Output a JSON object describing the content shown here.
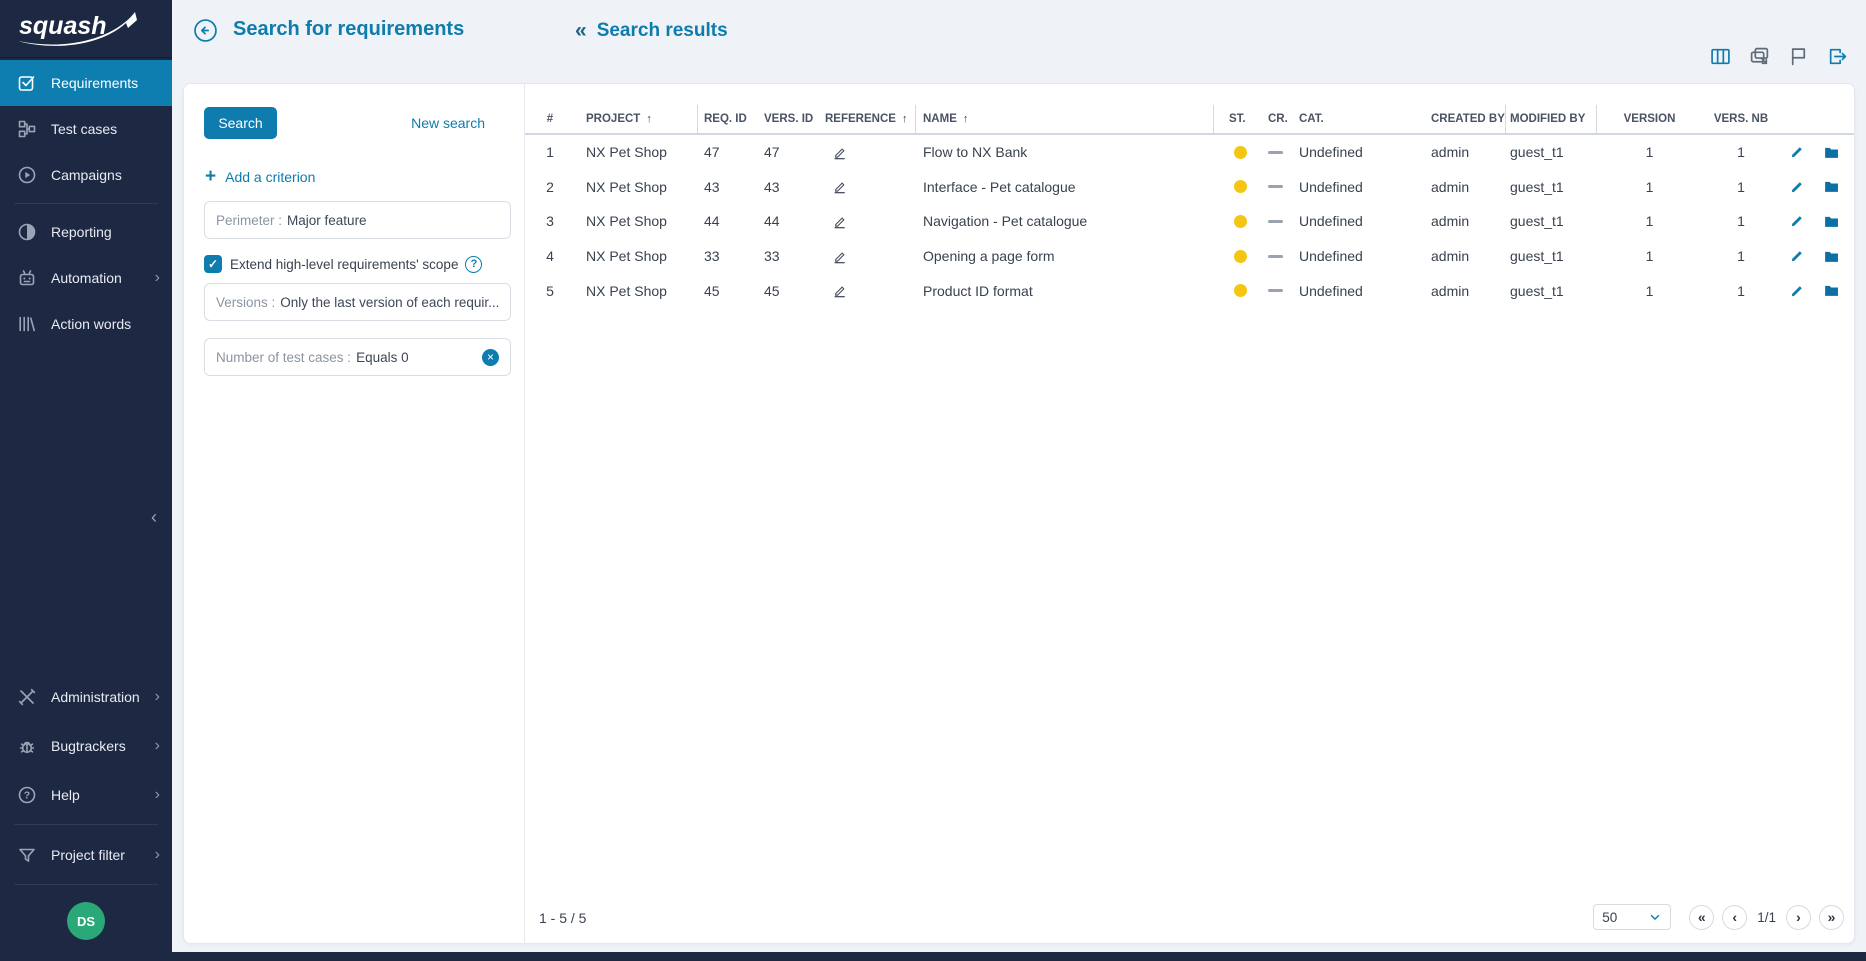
{
  "app": {
    "logo_text": "squash"
  },
  "sidebar": {
    "items": [
      {
        "label": "Requirements",
        "icon": "requirements-icon",
        "active": true
      },
      {
        "label": "Test cases",
        "icon": "test-cases-icon"
      },
      {
        "label": "Campaigns",
        "icon": "campaigns-icon"
      },
      {
        "label": "Reporting",
        "icon": "reporting-icon",
        "divider_before": true
      },
      {
        "label": "Automation",
        "icon": "automation-icon",
        "chevron": true
      },
      {
        "label": "Action words",
        "icon": "action-words-icon"
      }
    ],
    "bottom_items": [
      {
        "label": "Administration",
        "icon": "administration-icon",
        "chevron": true
      },
      {
        "label": "Bugtrackers",
        "icon": "bugtrackers-icon",
        "chevron": true
      },
      {
        "label": "Help",
        "icon": "help-icon",
        "chevron": true
      },
      {
        "label": "Project filter",
        "icon": "project-filter-icon",
        "chevron": true,
        "divider_before": true
      }
    ],
    "avatar_initials": "DS"
  },
  "header": {
    "title": "Search for requirements",
    "results_label": "Search results",
    "toolbar": [
      {
        "icon": "columns-icon",
        "style": "accent"
      },
      {
        "icon": "duplicate-icon",
        "style": "muted"
      },
      {
        "icon": "flag-icon",
        "style": "muted"
      },
      {
        "icon": "export-icon",
        "style": "accent"
      }
    ]
  },
  "search_panel": {
    "search_button": "Search",
    "new_search_link": "New search",
    "add_criterion_label": "Add a criterion",
    "checkbox": {
      "label": "Extend high-level requirements' scope",
      "checked": true
    },
    "criteria": [
      {
        "label": "Perimeter :",
        "value": "Major feature",
        "removable": false
      },
      {
        "label": "Versions :",
        "value": "Only the last version of each requir...",
        "removable": false
      },
      {
        "label": "Number of test cases :",
        "value": "Equals 0",
        "removable": true
      }
    ]
  },
  "table": {
    "columns": [
      {
        "label": "#"
      },
      {
        "label": "PROJECT",
        "sorted": true
      },
      {
        "label": "REQ. ID"
      },
      {
        "label": "VERS. ID"
      },
      {
        "label": "REFERENCE",
        "sorted": true
      },
      {
        "label": "NAME",
        "sorted": true
      },
      {
        "label": "ST."
      },
      {
        "label": "CR."
      },
      {
        "label": "CAT."
      },
      {
        "label": "CREATED BY"
      },
      {
        "label": "MODIFIED BY"
      },
      {
        "label": "VERSION"
      },
      {
        "label": "VERS. NB"
      },
      {
        "label": ""
      },
      {
        "label": ""
      }
    ],
    "status_color": "#f3c614",
    "rows": [
      {
        "num": "1",
        "project": "NX Pet Shop",
        "req_id": "47",
        "vers_id": "47",
        "name": "Flow to NX Bank",
        "category": "Undefined",
        "created_by": "admin",
        "modified_by": "guest_t1",
        "version": "1",
        "vers_nb": "1"
      },
      {
        "num": "2",
        "project": "NX Pet Shop",
        "req_id": "43",
        "vers_id": "43",
        "name": "Interface - Pet catalogue",
        "category": "Undefined",
        "created_by": "admin",
        "modified_by": "guest_t1",
        "version": "1",
        "vers_nb": "1"
      },
      {
        "num": "3",
        "project": "NX Pet Shop",
        "req_id": "44",
        "vers_id": "44",
        "name": "Navigation - Pet catalogue",
        "category": "Undefined",
        "created_by": "admin",
        "modified_by": "guest_t1",
        "version": "1",
        "vers_nb": "1"
      },
      {
        "num": "4",
        "project": "NX Pet Shop",
        "req_id": "33",
        "vers_id": "33",
        "name": "Opening a page form",
        "category": "Undefined",
        "created_by": "admin",
        "modified_by": "guest_t1",
        "version": "1",
        "vers_nb": "1"
      },
      {
        "num": "5",
        "project": "NX Pet Shop",
        "req_id": "45",
        "vers_id": "45",
        "name": "Product ID format",
        "category": "Undefined",
        "created_by": "admin",
        "modified_by": "guest_t1",
        "version": "1",
        "vers_nb": "1"
      }
    ]
  },
  "footer": {
    "count": "1 - 5 / 5",
    "page_size": "50",
    "page_indicator": "1/1"
  },
  "colors": {
    "accent": "#0e7cae",
    "sidebar_bg": "#1d2943",
    "active_item": "#0e7db0",
    "status_yellow": "#f3c614",
    "avatar_green": "#2ba878"
  }
}
